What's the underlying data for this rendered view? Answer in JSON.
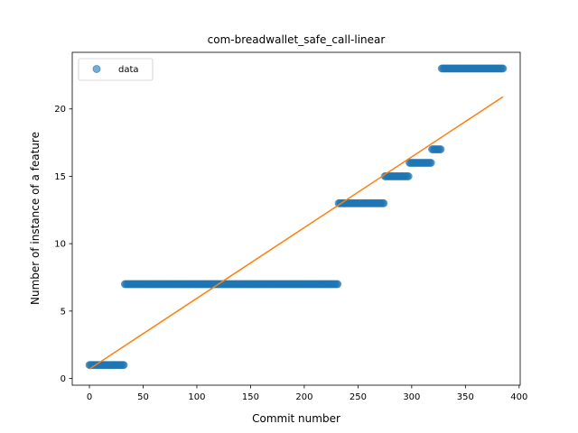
{
  "chart_data": {
    "type": "scatter",
    "title": "com-breadwallet_safe_call-linear",
    "xlabel": "Commit number",
    "ylabel": "Number of instance of a feature",
    "xlim": [
      -16,
      401
    ],
    "ylim": [
      -0.5,
      24.2
    ],
    "xticks": [
      0,
      50,
      100,
      150,
      200,
      250,
      300,
      350,
      400
    ],
    "yticks": [
      0,
      5,
      10,
      15,
      20
    ],
    "legend": {
      "position": "top-left",
      "entries": [
        "data"
      ]
    },
    "grid": false,
    "series": [
      {
        "name": "data",
        "kind": "points",
        "color": "#1f77b4",
        "segments": [
          {
            "x_start": 0,
            "x_end": 32,
            "y": 1
          },
          {
            "x_start": 33,
            "x_end": 231,
            "y": 7
          },
          {
            "x_start": 232,
            "x_end": 274,
            "y": 13
          },
          {
            "x_start": 275,
            "x_end": 297,
            "y": 15
          },
          {
            "x_start": 298,
            "x_end": 318,
            "y": 16
          },
          {
            "x_start": 319,
            "x_end": 327,
            "y": 17
          },
          {
            "x_start": 328,
            "x_end": 385,
            "y": 23
          }
        ]
      },
      {
        "kind": "fit-line",
        "color": "#ff7f0e",
        "x": [
          0,
          385
        ],
        "y": [
          0.7,
          20.9
        ]
      }
    ]
  }
}
